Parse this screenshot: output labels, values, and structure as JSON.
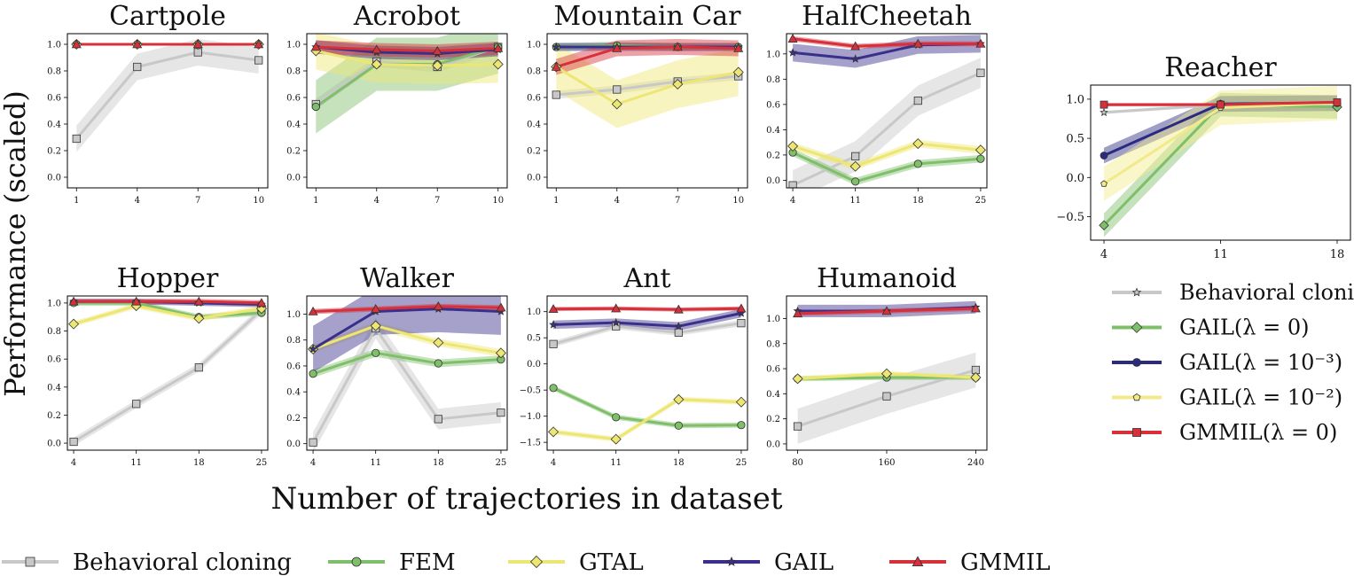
{
  "figure": {
    "ylabel": "Performance (scaled)",
    "xlabel": "Number of trajectories in dataset"
  },
  "colors": {
    "bc": "#c8c8c8",
    "fem": "#7fbf6a",
    "gtal": "#ede673",
    "gail": "#3a2f8a",
    "gmmil": "#d6303b",
    "gail_m3": "#2a2a80",
    "gail_m2": "#f2ea8a",
    "gmmil_r": "#d6303b"
  },
  "legend": {
    "items": [
      {
        "key": "bc",
        "label": "Behavioral cloning",
        "marker": "square"
      },
      {
        "key": "fem",
        "label": "FEM",
        "marker": "circle"
      },
      {
        "key": "gtal",
        "label": "GTAL",
        "marker": "diamond"
      },
      {
        "key": "gail",
        "label": "GAIL",
        "marker": "star"
      },
      {
        "key": "gmmil",
        "label": "GMMIL",
        "marker": "triangle"
      }
    ]
  },
  "reacher_legend": {
    "items": [
      {
        "key": "bc",
        "label": "Behavioral cloning",
        "marker": "star"
      },
      {
        "key": "fem",
        "label": "GAIL(λ = 0)",
        "marker": "diamond"
      },
      {
        "key": "gail_m3",
        "label": "GAIL(λ = 10⁻³)",
        "marker": "circle"
      },
      {
        "key": "gail_m2",
        "label": "GAIL(λ = 10⁻²)",
        "marker": "pentagon"
      },
      {
        "key": "gmmil_r",
        "label": "GMMIL(λ = 0)",
        "marker": "square"
      }
    ]
  },
  "chart_data": [
    {
      "type": "line",
      "title": "Cartpole",
      "x": [
        1,
        4,
        7,
        10
      ],
      "xlim": [
        0.55,
        10.45
      ],
      "ylim": [
        -0.08,
        1.08
      ],
      "xticks": [
        "1",
        "4",
        "7",
        "10"
      ],
      "yticks": [
        "0.0",
        "0.2",
        "0.4",
        "0.6",
        "0.8",
        "1.0"
      ],
      "ytick_values": [
        0,
        0.2,
        0.4,
        0.6,
        0.8,
        1.0
      ],
      "series": [
        {
          "name": "Behavioral cloning",
          "key": "bc",
          "marker": "square",
          "values": [
            0.29,
            0.83,
            0.94,
            0.88
          ],
          "band": 0.1
        },
        {
          "name": "FEM",
          "key": "fem",
          "marker": "circle",
          "values": [
            1.0,
            1.0,
            1.0,
            1.0
          ],
          "band": 0.01
        },
        {
          "name": "GTAL",
          "key": "gtal",
          "marker": "diamond",
          "values": [
            1.0,
            1.0,
            1.0,
            1.0
          ],
          "band": 0.01
        },
        {
          "name": "GAIL",
          "key": "gail",
          "marker": "star",
          "values": [
            1.0,
            1.0,
            1.0,
            1.0
          ],
          "band": 0.01
        },
        {
          "name": "GMMIL",
          "key": "gmmil",
          "marker": "triangle",
          "values": [
            1.0,
            1.0,
            1.0,
            1.0
          ],
          "band": 0.01
        }
      ]
    },
    {
      "type": "line",
      "title": "Acrobot",
      "x": [
        1,
        4,
        7,
        10
      ],
      "xlim": [
        0.55,
        10.45
      ],
      "ylim": [
        -0.08,
        1.08
      ],
      "xticks": [
        "1",
        "4",
        "7",
        "10"
      ],
      "yticks": [
        "0.0",
        "0.2",
        "0.4",
        "0.6",
        "0.8",
        "1.0"
      ],
      "ytick_values": [
        0,
        0.2,
        0.4,
        0.6,
        0.8,
        1.0
      ],
      "series": [
        {
          "name": "Behavioral cloning",
          "key": "bc",
          "marker": "square",
          "values": [
            0.55,
            0.87,
            0.83,
            0.98
          ],
          "band": 0.04
        },
        {
          "name": "FEM",
          "key": "fem",
          "marker": "circle",
          "values": [
            0.53,
            0.85,
            0.85,
            0.98
          ],
          "band": 0.2
        },
        {
          "name": "GTAL",
          "key": "gtal",
          "marker": "diamond",
          "values": [
            0.95,
            0.85,
            0.84,
            0.85
          ],
          "band": 0.14
        },
        {
          "name": "GAIL",
          "key": "gail",
          "marker": "star",
          "values": [
            0.98,
            0.94,
            0.93,
            0.96
          ],
          "band": 0.05
        },
        {
          "name": "GMMIL",
          "key": "gmmil",
          "marker": "triangle",
          "values": [
            0.98,
            0.96,
            0.95,
            0.97
          ],
          "band": 0.05
        }
      ]
    },
    {
      "type": "line",
      "title": "Mountain Car",
      "x": [
        1,
        4,
        7,
        10
      ],
      "xlim": [
        0.55,
        10.45
      ],
      "ylim": [
        -0.08,
        1.08
      ],
      "xticks": [
        "1",
        "4",
        "7",
        "10"
      ],
      "yticks": [
        "0.0",
        "0.2",
        "0.4",
        "0.6",
        "0.8",
        "1.0"
      ],
      "ytick_values": [
        0,
        0.2,
        0.4,
        0.6,
        0.8,
        1.0
      ],
      "series": [
        {
          "name": "Behavioral cloning",
          "key": "bc",
          "marker": "square",
          "values": [
            0.62,
            0.66,
            0.72,
            0.76
          ],
          "band": 0.03
        },
        {
          "name": "FEM",
          "key": "fem",
          "marker": "circle",
          "values": [
            0.98,
            0.99,
            0.98,
            0.98
          ],
          "band": 0.03
        },
        {
          "name": "GTAL",
          "key": "gtal",
          "marker": "diamond",
          "values": [
            0.83,
            0.55,
            0.7,
            0.79
          ],
          "band": 0.18
        },
        {
          "name": "GAIL",
          "key": "gail",
          "marker": "star",
          "values": [
            0.98,
            0.98,
            0.98,
            0.98
          ],
          "band": 0.03
        },
        {
          "name": "GMMIL",
          "key": "gmmil",
          "marker": "triangle",
          "values": [
            0.83,
            0.97,
            0.98,
            0.97
          ],
          "band": 0.06
        }
      ]
    },
    {
      "type": "line",
      "title": "HalfCheetah",
      "x": [
        4,
        11,
        18,
        25
      ],
      "xlim": [
        3.3,
        25.7
      ],
      "ylim": [
        -0.06,
        1.16
      ],
      "xticks": [
        "4",
        "11",
        "18",
        "25"
      ],
      "yticks": [
        "0.0",
        "0.2",
        "0.4",
        "0.6",
        "0.8",
        "1.0"
      ],
      "ytick_values": [
        0,
        0.2,
        0.4,
        0.6,
        0.8,
        1.0
      ],
      "series": [
        {
          "name": "Behavioral cloning",
          "key": "bc",
          "marker": "square",
          "values": [
            -0.04,
            0.19,
            0.63,
            0.85
          ],
          "band": 0.12
        },
        {
          "name": "FEM",
          "key": "fem",
          "marker": "circle",
          "values": [
            0.22,
            -0.01,
            0.13,
            0.17
          ],
          "band": 0.03
        },
        {
          "name": "GTAL",
          "key": "gtal",
          "marker": "diamond",
          "values": [
            0.27,
            0.11,
            0.29,
            0.24
          ],
          "band": 0.03
        },
        {
          "name": "GAIL",
          "key": "gail",
          "marker": "star",
          "values": [
            1.01,
            0.96,
            1.07,
            1.08
          ],
          "band": 0.07
        },
        {
          "name": "GMMIL",
          "key": "gmmil",
          "marker": "triangle",
          "values": [
            1.12,
            1.06,
            1.08,
            1.08
          ],
          "band": 0.02
        }
      ]
    },
    {
      "type": "line",
      "title": "Hopper",
      "x": [
        4,
        11,
        18,
        25
      ],
      "xlim": [
        3.3,
        25.7
      ],
      "ylim": [
        -0.05,
        1.05
      ],
      "xticks": [
        "4",
        "11",
        "18",
        "25"
      ],
      "yticks": [
        "0.0",
        "0.2",
        "0.4",
        "0.6",
        "0.8",
        "1.0"
      ],
      "ytick_values": [
        0,
        0.2,
        0.4,
        0.6,
        0.8,
        1.0
      ],
      "series": [
        {
          "name": "Behavioral cloning",
          "key": "bc",
          "marker": "square",
          "values": [
            0.01,
            0.28,
            0.54,
            0.95
          ],
          "band": 0.03
        },
        {
          "name": "FEM",
          "key": "fem",
          "marker": "circle",
          "values": [
            1.0,
            1.0,
            0.9,
            0.93
          ],
          "band": 0.02
        },
        {
          "name": "GTAL",
          "key": "gtal",
          "marker": "diamond",
          "values": [
            0.85,
            0.98,
            0.89,
            0.96
          ],
          "band": 0.02
        },
        {
          "name": "GAIL",
          "key": "gail",
          "marker": "star",
          "values": [
            1.01,
            1.01,
            1.0,
            0.99
          ],
          "band": 0.02
        },
        {
          "name": "GMMIL",
          "key": "gmmil",
          "marker": "triangle",
          "values": [
            1.01,
            1.01,
            1.01,
            1.0
          ],
          "band": 0.02
        }
      ]
    },
    {
      "type": "line",
      "title": "Walker",
      "x": [
        4,
        11,
        18,
        25
      ],
      "xlim": [
        3.3,
        25.7
      ],
      "ylim": [
        -0.05,
        1.14
      ],
      "xticks": [
        "4",
        "11",
        "18",
        "25"
      ],
      "yticks": [
        "0.0",
        "0.2",
        "0.4",
        "0.6",
        "0.8",
        "1.0"
      ],
      "ytick_values": [
        0,
        0.2,
        0.4,
        0.6,
        0.8,
        1.0
      ],
      "series": [
        {
          "name": "Behavioral cloning",
          "key": "bc",
          "marker": "square",
          "values": [
            0.01,
            0.89,
            0.19,
            0.24
          ],
          "band": 0.08
        },
        {
          "name": "FEM",
          "key": "fem",
          "marker": "circle",
          "values": [
            0.54,
            0.7,
            0.62,
            0.65
          ],
          "band": 0.03
        },
        {
          "name": "GTAL",
          "key": "gtal",
          "marker": "diamond",
          "values": [
            0.73,
            0.91,
            0.78,
            0.7
          ],
          "band": 0.03
        },
        {
          "name": "GAIL",
          "key": "gail",
          "marker": "star",
          "values": [
            0.73,
            1.02,
            1.04,
            1.02
          ],
          "band": 0.18
        },
        {
          "name": "GMMIL",
          "key": "gmmil",
          "marker": "triangle",
          "values": [
            1.02,
            1.04,
            1.06,
            1.05
          ],
          "band": 0.02
        }
      ]
    },
    {
      "type": "line",
      "title": "Ant",
      "x": [
        4,
        11,
        18,
        25
      ],
      "xlim": [
        3.3,
        25.7
      ],
      "ylim": [
        -1.65,
        1.3
      ],
      "xticks": [
        "4",
        "11",
        "18",
        "25"
      ],
      "yticks": [
        "−1.5",
        "−1.0",
        "−0.5",
        "0.0",
        "0.5",
        "1.0"
      ],
      "ytick_values": [
        -1.5,
        -1.0,
        -0.5,
        0,
        0.5,
        1.0
      ],
      "series": [
        {
          "name": "Behavioral cloning",
          "key": "bc",
          "marker": "square",
          "values": [
            0.38,
            0.72,
            0.6,
            0.78
          ],
          "band": 0.06
        },
        {
          "name": "FEM",
          "key": "fem",
          "marker": "circle",
          "values": [
            -0.46,
            -1.02,
            -1.18,
            -1.17
          ],
          "band": 0.05
        },
        {
          "name": "GTAL",
          "key": "gtal",
          "marker": "diamond",
          "values": [
            -1.3,
            -1.44,
            -0.68,
            -0.73
          ],
          "band": 0.05
        },
        {
          "name": "GAIL",
          "key": "gail",
          "marker": "star",
          "values": [
            0.75,
            0.79,
            0.72,
            0.97
          ],
          "band": 0.08
        },
        {
          "name": "GMMIL",
          "key": "gmmil",
          "marker": "triangle",
          "values": [
            1.05,
            1.06,
            1.04,
            1.06
          ],
          "band": 0.04
        }
      ]
    },
    {
      "type": "line",
      "title": "Humanoid",
      "x": [
        80,
        160,
        240
      ],
      "xlim": [
        70,
        250
      ],
      "ylim": [
        -0.05,
        1.18
      ],
      "xticks": [
        "80",
        "160",
        "240"
      ],
      "yticks": [
        "0.0",
        "0.2",
        "0.4",
        "0.6",
        "0.8",
        "1.0"
      ],
      "ytick_values": [
        0,
        0.2,
        0.4,
        0.6,
        0.8,
        1.0
      ],
      "series": [
        {
          "name": "Behavioral cloning",
          "key": "bc",
          "marker": "square",
          "values": [
            0.14,
            0.38,
            0.59
          ],
          "band": 0.14
        },
        {
          "name": "FEM",
          "key": "fem",
          "marker": "circle",
          "values": [
            0.52,
            0.53,
            0.53
          ],
          "band": 0.02
        },
        {
          "name": "GTAL",
          "key": "gtal",
          "marker": "diamond",
          "values": [
            0.52,
            0.56,
            0.53
          ],
          "band": 0.02
        },
        {
          "name": "GAIL",
          "key": "gail",
          "marker": "star",
          "values": [
            1.06,
            1.06,
            1.09
          ],
          "band": 0.05
        },
        {
          "name": "GMMIL",
          "key": "gmmil",
          "marker": "triangle",
          "values": [
            1.04,
            1.06,
            1.08
          ],
          "band": 0.02
        }
      ]
    },
    {
      "type": "line",
      "title": "Reacher",
      "x": [
        4,
        11,
        18
      ],
      "xlim": [
        3.2,
        18.8
      ],
      "ylim": [
        -0.8,
        1.18
      ],
      "xticks": [
        "4",
        "11",
        "18"
      ],
      "yticks": [
        "−0.5",
        "0.0",
        "0.5",
        "1.0"
      ],
      "ytick_values": [
        -0.5,
        0,
        0.5,
        1.0
      ],
      "series": [
        {
          "name": "Behavioral cloning",
          "key": "bc",
          "marker": "star",
          "values": [
            0.83,
            0.93,
            0.92
          ],
          "band": 0.02
        },
        {
          "name": "GAIL(λ = 0)",
          "key": "fem",
          "marker": "diamond",
          "values": [
            -0.61,
            0.93,
            0.9
          ],
          "band": 0.15
        },
        {
          "name": "GAIL(λ = 10⁻³)",
          "key": "gail_m3",
          "marker": "circle",
          "values": [
            0.28,
            0.94,
            0.95
          ],
          "band": 0.1
        },
        {
          "name": "GAIL(λ = 10⁻²)",
          "key": "gail_m2",
          "marker": "pentagon",
          "values": [
            -0.08,
            0.89,
            0.95
          ],
          "band": 0.22
        },
        {
          "name": "GMMIL(λ = 0)",
          "key": "gmmil_r",
          "marker": "square",
          "values": [
            0.93,
            0.93,
            0.96
          ],
          "band": 0.02
        }
      ]
    }
  ]
}
